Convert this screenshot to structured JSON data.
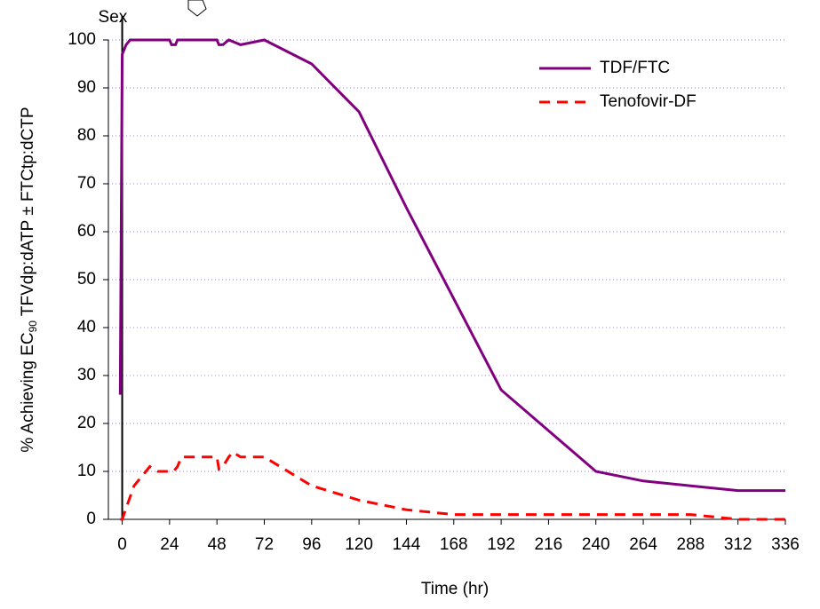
{
  "chart_data": {
    "type": "line",
    "xlabel": "Time (hr)",
    "ylabel": [
      "% Achieving EC",
      "90",
      " TFVdp:dATP ± FTCtp:dCTP"
    ],
    "annotation": {
      "text": "Sex",
      "x": 0
    },
    "xlim": [
      -7,
      336
    ],
    "xticks": [
      0,
      24,
      48,
      72,
      96,
      120,
      144,
      168,
      192,
      216,
      240,
      264,
      288,
      312,
      336
    ],
    "ylim": [
      0,
      100
    ],
    "yticks": [
      0,
      10,
      20,
      30,
      40,
      50,
      60,
      70,
      80,
      90,
      100
    ],
    "grid": true,
    "legend": "upper right",
    "series": [
      {
        "name": "TDF/FTC",
        "color": "#800080",
        "dash": "solid",
        "x": [
          -1,
          0,
          2,
          4,
          24,
          25,
          27,
          28,
          30,
          48,
          49,
          51,
          54,
          60,
          72,
          96,
          120,
          144,
          168,
          192,
          216,
          240,
          264,
          288,
          312,
          336
        ],
        "values": [
          26,
          97,
          99,
          100,
          100,
          99,
          99,
          100,
          100,
          100,
          99,
          99,
          100,
          99,
          100,
          95,
          85,
          65,
          46,
          27,
          18.5,
          10,
          8,
          7,
          6,
          6
        ]
      },
      {
        "name": "Tenofovir-DF",
        "color": "#ff0000",
        "dash": "dashed",
        "x": [
          -1,
          0,
          6,
          12,
          14,
          18,
          24,
          26,
          28,
          30,
          48,
          49,
          51,
          54,
          56,
          60,
          72,
          96,
          120,
          144,
          168,
          192,
          240,
          264,
          288,
          312,
          336
        ],
        "values": [
          0,
          0,
          7,
          10,
          11,
          10,
          10,
          10,
          11,
          13,
          13,
          10.5,
          11,
          13,
          14,
          13,
          13,
          7,
          4,
          2,
          1,
          1,
          1,
          1,
          1,
          0,
          0
        ]
      }
    ]
  }
}
